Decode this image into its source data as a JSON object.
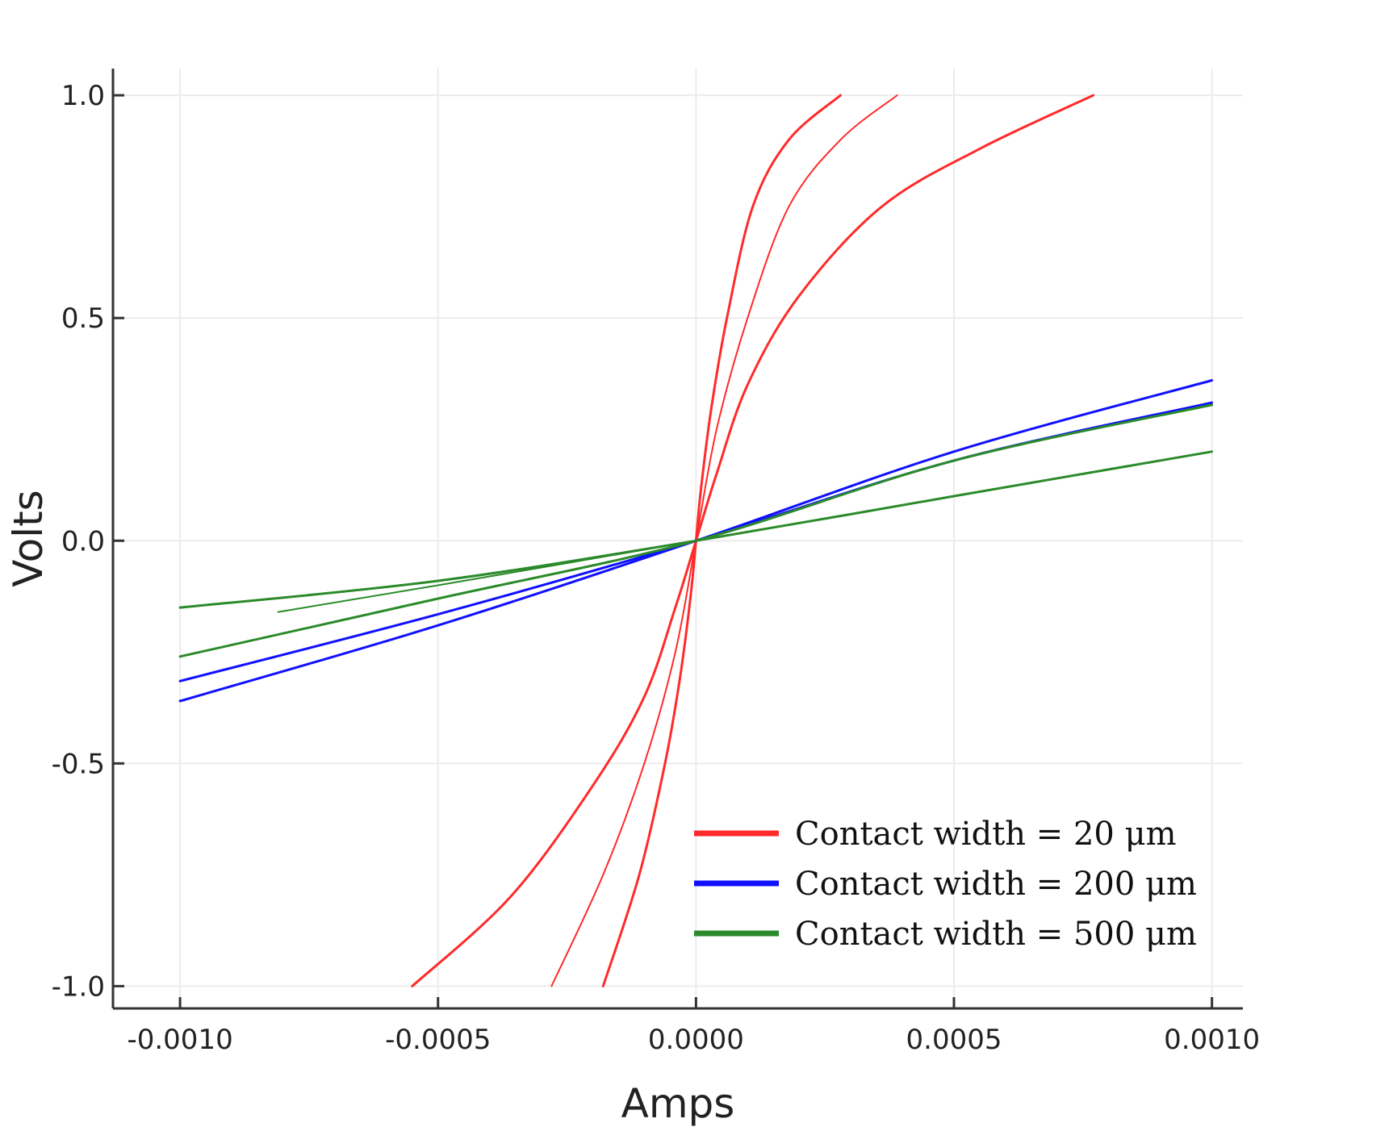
{
  "chart_data": {
    "type": "line",
    "xlabel": "Amps",
    "ylabel": "Volts",
    "xlim": [
      -0.00113,
      0.00106
    ],
    "ylim": [
      -1.05,
      1.06
    ],
    "x_ticks": [
      -0.001,
      -0.0005,
      0.0,
      0.0005,
      0.001
    ],
    "x_tick_labels": [
      "-0.0010",
      "-0.0005",
      "0.0000",
      "0.0005",
      "0.0010"
    ],
    "y_ticks": [
      -1.0,
      -0.5,
      0.0,
      0.5,
      1.0
    ],
    "y_tick_labels": [
      "-1.0",
      "-0.5",
      "0.0",
      "0.5",
      "1.0"
    ],
    "grid": true,
    "legend_position": "bottom-right",
    "legend": [
      {
        "label": "Contact width = 20 μm",
        "color": "#ff2a2a"
      },
      {
        "label": "Contact width = 200 μm",
        "color": "#1010ff"
      },
      {
        "label": "Contact width = 500 μm",
        "color": "#2a8a2a"
      }
    ],
    "series": [
      {
        "group": 0,
        "color": "#ff2a2a",
        "width": 3,
        "points": [
          [
            -0.00018,
            -1.0
          ],
          [
            -0.00011,
            -0.75
          ],
          [
            -6e-05,
            -0.5
          ],
          [
            -3e-05,
            -0.3
          ],
          [
            -1e-05,
            -0.12
          ],
          [
            0.0,
            0.0
          ],
          [
            1e-05,
            0.12
          ],
          [
            3e-05,
            0.3
          ],
          [
            6e-05,
            0.5
          ],
          [
            0.00011,
            0.75
          ],
          [
            0.00018,
            0.9
          ],
          [
            0.00028,
            1.0
          ]
        ]
      },
      {
        "group": 0,
        "color": "#ff2a2a",
        "width": 2,
        "points": [
          [
            -0.00028,
            -1.0
          ],
          [
            -0.00018,
            -0.75
          ],
          [
            -0.0001,
            -0.5
          ],
          [
            -4e-05,
            -0.25
          ],
          [
            0.0,
            0.0
          ],
          [
            4e-05,
            0.25
          ],
          [
            0.0001,
            0.5
          ],
          [
            0.00018,
            0.75
          ],
          [
            0.00028,
            0.9
          ],
          [
            0.00039,
            1.0
          ]
        ]
      },
      {
        "group": 0,
        "color": "#ff2a2a",
        "width": 3,
        "points": [
          [
            -0.00055,
            -1.0
          ],
          [
            -0.00036,
            -0.8
          ],
          [
            -0.0002,
            -0.55
          ],
          [
            -0.0001,
            -0.35
          ],
          [
            -4e-05,
            -0.15
          ],
          [
            0.0,
            0.0
          ],
          [
            4e-05,
            0.15
          ],
          [
            0.0001,
            0.35
          ],
          [
            0.0002,
            0.55
          ],
          [
            0.00036,
            0.75
          ],
          [
            0.00055,
            0.88
          ],
          [
            0.00077,
            1.0
          ]
        ]
      },
      {
        "group": 1,
        "color": "#1010ff",
        "width": 3,
        "points": [
          [
            -0.001,
            -0.36
          ],
          [
            -0.0005,
            -0.19
          ],
          [
            0.0,
            0.0
          ],
          [
            0.0005,
            0.2
          ],
          [
            0.001,
            0.36
          ]
        ]
      },
      {
        "group": 1,
        "color": "#1010ff",
        "width": 3,
        "points": [
          [
            -0.001,
            -0.315
          ],
          [
            -0.0005,
            -0.165
          ],
          [
            0.0,
            0.0
          ],
          [
            0.0005,
            0.18
          ],
          [
            0.001,
            0.31
          ]
        ]
      },
      {
        "group": 2,
        "color": "#2a8a2a",
        "width": 3,
        "points": [
          [
            -0.001,
            -0.26
          ],
          [
            -0.0005,
            -0.13
          ],
          [
            0.0,
            0.0
          ],
          [
            0.0005,
            0.18
          ],
          [
            0.001,
            0.305
          ]
        ]
      },
      {
        "group": 2,
        "color": "#2a8a2a",
        "width": 3,
        "points": [
          [
            -0.001,
            -0.15
          ],
          [
            -0.0005,
            -0.09
          ],
          [
            0.0,
            0.0
          ],
          [
            0.0005,
            0.1
          ],
          [
            0.001,
            0.2
          ]
        ]
      },
      {
        "group": 2,
        "color": "#2a8a2a",
        "width": 2,
        "points": [
          [
            -0.00081,
            -0.16
          ],
          [
            -0.0005,
            -0.1
          ],
          [
            0.0,
            0.0
          ]
        ]
      }
    ]
  }
}
